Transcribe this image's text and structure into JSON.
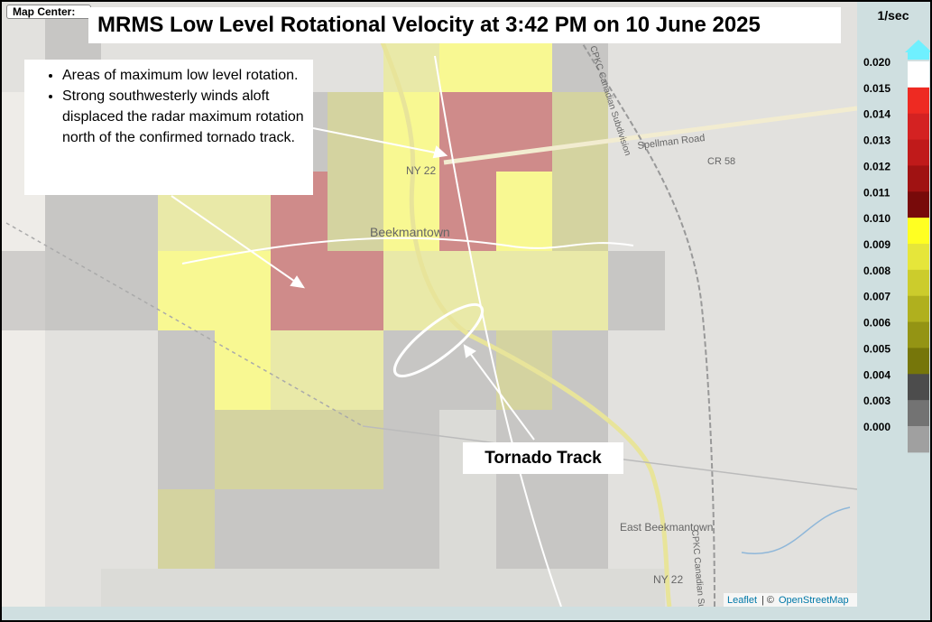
{
  "map_center_label": "Map Center:",
  "title": "MRMS Low Level Rotational Velocity at 3:42 PM on 10 June 2025",
  "bullets": [
    "Areas of maximum low level rotation.",
    "Strong southwesterly winds aloft displaced the radar maximum rotation north of the confirmed tornado track."
  ],
  "callout": "Tornado Track",
  "map_labels": {
    "route_north": "NY 22",
    "town": "Beekmantown",
    "road": "Spellman Road",
    "county_road": "CR 58",
    "east_town": "East Beekmantown",
    "route_south": "NY 22",
    "rail_north": "CPKC Canadian Subdivision",
    "rail_south": "CPKC Canadian Subdivision"
  },
  "attribution": {
    "leaflet": "Leaflet",
    "separator": "| ©",
    "osm": "OpenStreetMap"
  },
  "legend": {
    "unit": "1/sec",
    "labels": [
      "0.020",
      "0.015",
      "0.014",
      "0.013",
      "0.012",
      "0.011",
      "0.010",
      "0.009",
      "0.008",
      "0.007",
      "0.006",
      "0.005",
      "0.004",
      "0.003",
      "0.000"
    ],
    "colors": [
      "#ffffff",
      "#ee2a22",
      "#d42222",
      "#c01a1a",
      "#a01212",
      "#780a0a",
      "#ffff22",
      "#e6e63a",
      "#cccc2c",
      "#b0b01e",
      "#949414",
      "#76760a",
      "#4c4c4c",
      "#737373",
      "#a0a0a0"
    ]
  }
}
